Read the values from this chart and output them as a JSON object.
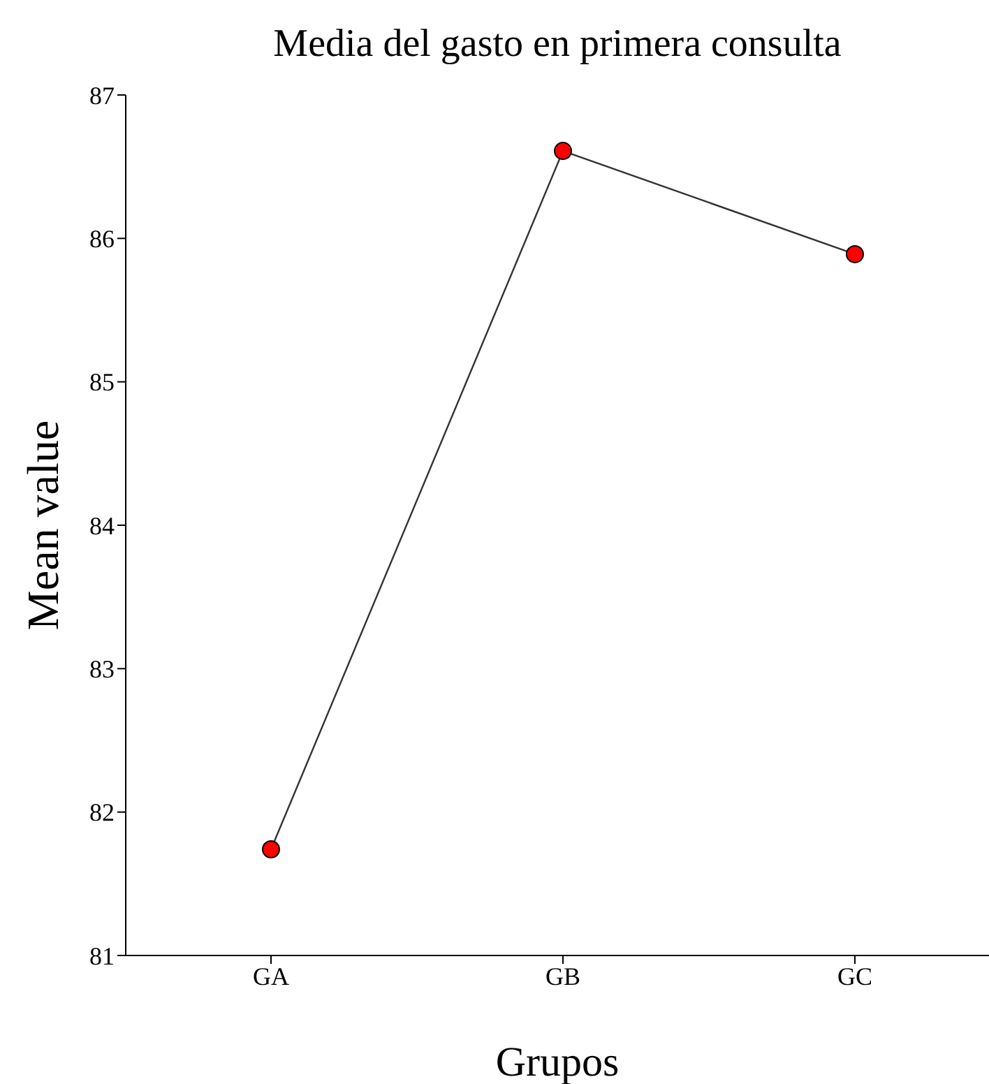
{
  "chart_data": {
    "type": "line",
    "title": "Media del gasto en primera consulta",
    "xlabel": "Grupos",
    "ylabel": "Mean value",
    "categories": [
      "GA",
      "GB",
      "GC"
    ],
    "series": [
      {
        "color": "#333333",
        "values": [
          81.74,
          86.61,
          85.89
        ]
      }
    ],
    "marker": "circle",
    "ylim": [
      81,
      87
    ],
    "yticks": [
      81,
      82,
      83,
      84,
      85,
      86,
      87
    ],
    "grid": false,
    "legend": false
  }
}
